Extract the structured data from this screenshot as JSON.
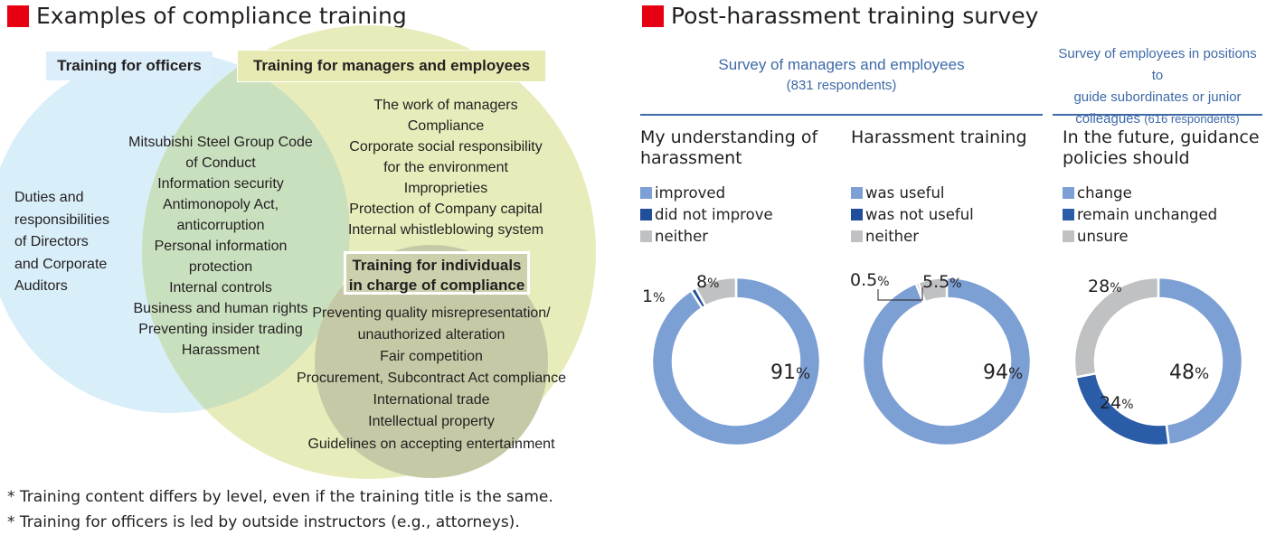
{
  "left": {
    "title": "Examples of compliance training",
    "box_officers": "Training for officers",
    "box_managers": "Training for managers and employees",
    "box_individuals": [
      "Training for individuals",
      "in charge of compliance"
    ],
    "officers_only": [
      "Duties and",
      "responsibilities",
      "of Directors",
      "and Corporate",
      "Auditors"
    ],
    "shared_items": [
      "Mitsubishi Steel Group Code",
      "of Conduct",
      "Information security",
      "Antimonopoly Act,",
      "anticorruption",
      "Personal information",
      "protection",
      "Internal controls",
      "Business and human rights",
      "Preventing insider trading",
      "Harassment"
    ],
    "manager_items": [
      "The work of managers",
      "Compliance",
      "Corporate social responsibility",
      "for the environment",
      "Improprieties",
      "Protection of Company capital",
      "Internal whistleblowing system"
    ],
    "individual_items": [
      "Preventing quality misrepresentation/",
      "unauthorized alteration",
      "Fair competition",
      "Procurement, Subcontract Act compliance",
      "International trade",
      "Intellectual property",
      "Guidelines on accepting entertainment"
    ],
    "notes": [
      "* Training content differs by level, even if the training title is the same.",
      "* Training for officers is led by outside instructors (e.g., attorneys)."
    ],
    "colors": {
      "officers": "#d8eef9",
      "managers": "#e8ecbb",
      "overlap": "#c9e0bf",
      "individuals": "#c6c9a6",
      "accent": "#e60012"
    }
  },
  "right": {
    "title": "Post-harassment training survey",
    "group1": {
      "title": "Survey of managers and employees",
      "respondents": "(831 respondents)"
    },
    "group2": {
      "lines": [
        "Survey of employees in positions to",
        "guide subordinates or junior"
      ],
      "last": "colleagues",
      "respondents": "(616 respondents)"
    }
  },
  "chart_data": [
    {
      "type": "pie",
      "title": "My understanding of harassment",
      "title_lines": [
        "My understanding of",
        "harassment"
      ],
      "categories": [
        "improved",
        "did not improve",
        "neither"
      ],
      "values": [
        91,
        1,
        8
      ],
      "labels": [
        "91",
        "1",
        "8"
      ],
      "colors": [
        "#7c9fd4",
        "#1f4f99",
        "#c0c1c3"
      ]
    },
    {
      "type": "pie",
      "title": "Harassment training",
      "title_lines": [
        "Harassment training"
      ],
      "categories": [
        "was useful",
        "was not useful",
        "neither"
      ],
      "values": [
        94,
        0.5,
        5.5
      ],
      "labels": [
        "94",
        "0.5",
        "5.5"
      ],
      "colors": [
        "#7c9fd4",
        "#1f4f99",
        "#c0c1c3"
      ]
    },
    {
      "type": "pie",
      "title": "In the future, guidance policies should",
      "title_lines": [
        "In the future, guidance",
        "policies should"
      ],
      "categories": [
        "change",
        "remain unchanged",
        "unsure"
      ],
      "values": [
        48,
        24,
        28
      ],
      "labels": [
        "48",
        "24",
        "28"
      ],
      "colors": [
        "#7c9fd4",
        "#2a5ca8",
        "#c0c1c3"
      ]
    }
  ],
  "percent_sign": "%"
}
